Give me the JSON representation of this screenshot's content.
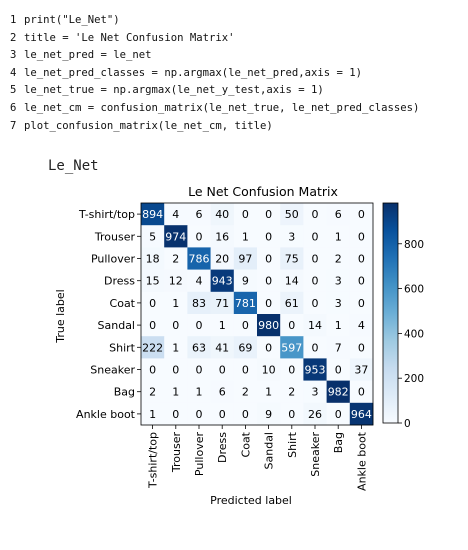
{
  "code_lines": [
    {
      "num": "1",
      "text": "print(\"Le_Net\")"
    },
    {
      "num": "2",
      "text": "title = 'Le Net Confusion Matrix'"
    },
    {
      "num": "3",
      "text": "le_net_pred = le_net"
    },
    {
      "num": "4",
      "text": "le_net_pred_classes = np.argmax(le_net_pred,axis = 1)"
    },
    {
      "num": "5",
      "text": "le_net_true = np.argmax(le_net_y_test,axis = 1)"
    },
    {
      "num": "6",
      "text": "le_net_cm = confusion_matrix(le_net_true, le_net_pred_classes)"
    },
    {
      "num": "7",
      "text": "plot_confusion_matrix(le_net_cm, title)"
    }
  ],
  "output_text": "Le_Net",
  "chart_data": {
    "type": "heatmap",
    "title": "Le Net Confusion Matrix",
    "xlabel": "Predicted label",
    "ylabel": "True label",
    "labels": [
      "T-shirt/top",
      "Trouser",
      "Pullover",
      "Dress",
      "Coat",
      "Sandal",
      "Shirt",
      "Sneaker",
      "Bag",
      "Ankle boot"
    ],
    "matrix": [
      [
        894,
        4,
        6,
        40,
        0,
        0,
        50,
        0,
        6,
        0
      ],
      [
        5,
        974,
        0,
        16,
        1,
        0,
        3,
        0,
        1,
        0
      ],
      [
        18,
        2,
        786,
        20,
        97,
        0,
        75,
        0,
        2,
        0
      ],
      [
        15,
        12,
        4,
        943,
        9,
        0,
        14,
        0,
        3,
        0
      ],
      [
        0,
        1,
        83,
        71,
        781,
        0,
        61,
        0,
        3,
        0
      ],
      [
        0,
        0,
        0,
        1,
        0,
        980,
        0,
        14,
        1,
        4
      ],
      [
        222,
        1,
        63,
        41,
        69,
        0,
        597,
        0,
        7,
        0
      ],
      [
        0,
        0,
        0,
        0,
        0,
        10,
        0,
        953,
        0,
        37
      ],
      [
        2,
        1,
        1,
        6,
        2,
        1,
        2,
        3,
        982,
        0
      ],
      [
        1,
        0,
        0,
        0,
        0,
        9,
        0,
        26,
        0,
        964
      ]
    ],
    "colormap": "Blues",
    "colors": {
      "low": "#f7fbff",
      "high": "#08306b"
    },
    "vmin": 0,
    "vmax": 982,
    "colorbar_ticks": [
      0,
      200,
      400,
      600,
      800
    ],
    "colorbar_tick_labels": [
      "0",
      "200",
      "400",
      "600",
      "800"
    ]
  }
}
